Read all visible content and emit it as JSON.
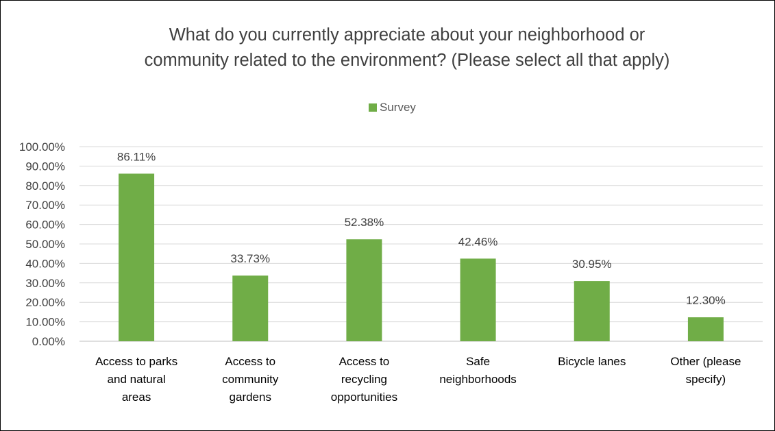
{
  "colors": {
    "bar": "#70ad47",
    "grid": "#d9d9d9",
    "axis": "#bfbfbf"
  },
  "chart_data": {
    "type": "bar",
    "title_lines": [
      "What do you currently appreciate about your neighborhood or",
      "community related to the environment? (Please select all that apply)"
    ],
    "categories": [
      [
        "Access to parks",
        "and natural",
        "areas"
      ],
      [
        "Access to",
        "community",
        "gardens"
      ],
      [
        "Access to",
        "recycling",
        "opportunities"
      ],
      [
        "Safe",
        "neighborhoods"
      ],
      [
        "Bicycle lanes"
      ],
      [
        "Other (please",
        "specify)"
      ]
    ],
    "series": [
      {
        "name": "Survey",
        "values": [
          86.11,
          33.73,
          52.38,
          42.46,
          30.95,
          12.3
        ],
        "labels": [
          "86.11%",
          "33.73%",
          "52.38%",
          "42.46%",
          "30.95%",
          "12.30%"
        ]
      }
    ],
    "ylim": [
      0,
      100
    ],
    "ytick_values": [
      0,
      10,
      20,
      30,
      40,
      50,
      60,
      70,
      80,
      90,
      100
    ],
    "ytick_labels": [
      "0.00%",
      "10.00%",
      "20.00%",
      "30.00%",
      "40.00%",
      "50.00%",
      "60.00%",
      "70.00%",
      "80.00%",
      "90.00%",
      "100.00%"
    ],
    "grid": true,
    "legend_position": "top-center"
  }
}
